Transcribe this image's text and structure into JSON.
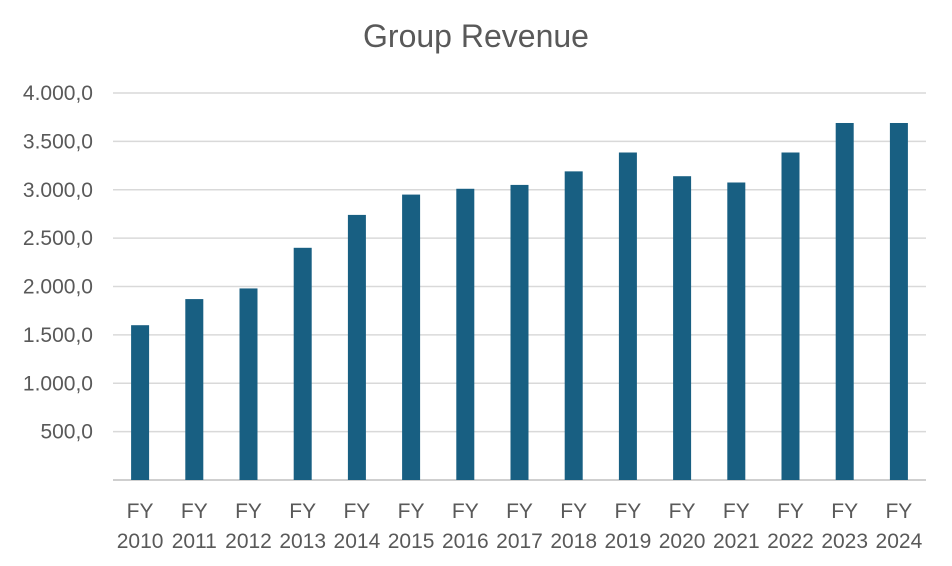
{
  "chart_data": {
    "type": "bar",
    "title": "Group Revenue",
    "xlabel": "",
    "ylabel": "",
    "categories": [
      [
        "FY",
        "2010"
      ],
      [
        "FY",
        "2011"
      ],
      [
        "FY",
        "2012"
      ],
      [
        "FY",
        "2013"
      ],
      [
        "FY",
        "2014"
      ],
      [
        "FY",
        "2015"
      ],
      [
        "FY",
        "2016"
      ],
      [
        "FY",
        "2017"
      ],
      [
        "FY",
        "2018"
      ],
      [
        "FY",
        "2019"
      ],
      [
        "FY",
        "2020"
      ],
      [
        "FY",
        "2021"
      ],
      [
        "FY",
        "2022"
      ],
      [
        "FY",
        "2023"
      ],
      [
        "FY",
        "2024"
      ]
    ],
    "values": [
      1600,
      1870,
      1980,
      2400,
      2740,
      2950,
      3010,
      3050,
      3190,
      3385,
      3140,
      3075,
      3385,
      3690,
      3690
    ],
    "ylim": [
      0,
      4000
    ],
    "yticks": [
      500,
      1000,
      1500,
      2000,
      2500,
      3000,
      3500,
      4000
    ],
    "ytick_labels": [
      "500,0",
      "1.000,0",
      "1.500,0",
      "2.000,0",
      "2.500,0",
      "3.000,0",
      "3.500,0",
      "4.000,0"
    ],
    "grid": true,
    "legend": "none",
    "colors": {
      "bar": "#185F82",
      "grid": "#D9D9D9",
      "axis": "#BFBFBF",
      "text": "#595959"
    }
  }
}
